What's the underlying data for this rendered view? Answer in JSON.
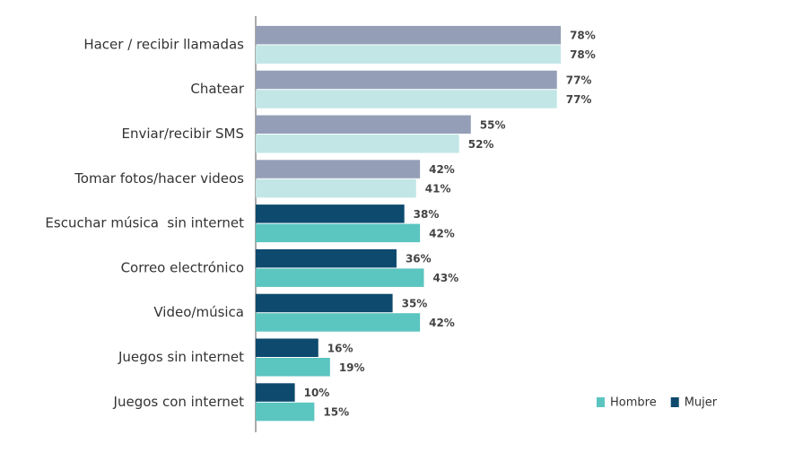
{
  "chart_data": {
    "type": "hbar",
    "categories": [
      "Hacer / recibir llamadas",
      "Chatear",
      "Enviar/recibir SMS",
      "Tomar fotos/hacer videos",
      "Escuchar música  sin internet",
      "Correo electrónico",
      "Video/música",
      "Juegos sin internet",
      "Juegos con internet"
    ],
    "xlim": [
      0,
      100
    ],
    "legend": "bottom-right",
    "series": [
      {
        "name": "Hombre",
        "color": "#5bc5c0",
        "colors": [
          "#c2e6e6",
          "#c2e6e6",
          "#c2e6e6",
          "#c2e6e6",
          "#5bc5c0",
          "#5bc5c0",
          "#5bc5c0",
          "#5bc5c0",
          "#5bc5c0"
        ],
        "values": [
          78,
          77,
          52,
          41,
          42,
          43,
          42,
          19,
          15
        ],
        "value_labels": [
          "78%",
          "77%",
          "52%",
          "41%",
          "42%",
          "43%",
          "42%",
          "19%",
          "15%"
        ]
      },
      {
        "name": "Mujer",
        "color": "#0d4a6e",
        "colors": [
          "#949fb7",
          "#949fb7",
          "#949fb7",
          "#949fb7",
          "#0d4a6e",
          "#0d4a6e",
          "#0d4a6e",
          "#0d4a6e",
          "#0d4a6e"
        ],
        "values": [
          78,
          77,
          55,
          42,
          38,
          36,
          35,
          16,
          10
        ],
        "value_labels": [
          "78%",
          "77%",
          "55%",
          "42%",
          "38%",
          "36%",
          "35%",
          "16%",
          "10%"
        ]
      }
    ]
  }
}
